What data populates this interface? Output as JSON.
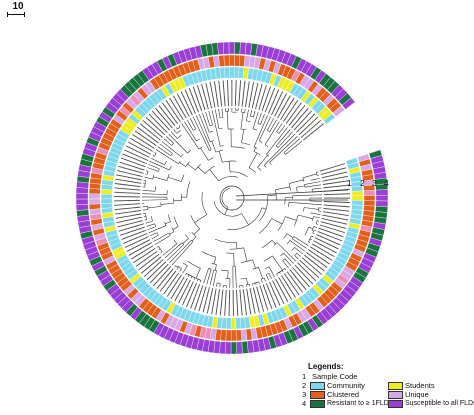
{
  "scale": {
    "label": "10"
  },
  "ring_numbers": [
    "1",
    "2",
    "3",
    "4"
  ],
  "legend": {
    "title": "Legends:",
    "rows": [
      {
        "num": "1",
        "label": "Sample Code"
      },
      {
        "num": "2",
        "label": "Community",
        "color": "#7dd8ee",
        "label2": "Students",
        "color2": "#eded22"
      },
      {
        "num": "3",
        "label": "Clustered",
        "color": "#e2601c",
        "label2": "Unique",
        "color2": "#d8a8e8"
      },
      {
        "num": "4",
        "label": "Resistant to ≥ 1FLDs",
        "color": "#1a7440",
        "label2": "Susceptible to all FLDs",
        "color2": "#9a3ed6"
      }
    ]
  },
  "colors": {
    "community": "#7dd8ee",
    "students": "#eded22",
    "clustered": "#e2601c",
    "unique": "#d8a8e8",
    "resistant": "#1a7440",
    "susceptible": "#9a3ed6",
    "pink_cluster": "#ec8eb6",
    "tree": "#333333",
    "labels": "#4a4a4a"
  },
  "icons": [
    "scale-bar-icon"
  ]
}
